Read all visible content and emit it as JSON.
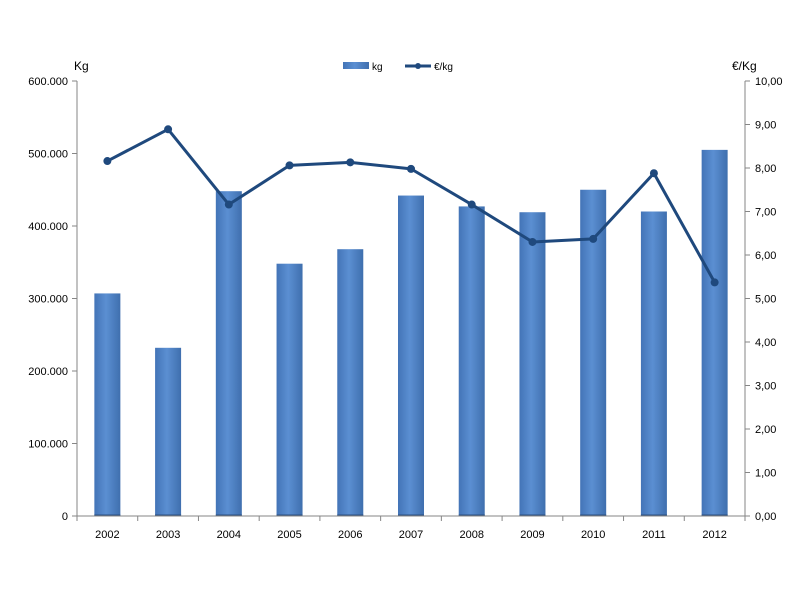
{
  "chart_data": {
    "type": "bar",
    "categories": [
      "2002",
      "2003",
      "2004",
      "2005",
      "2006",
      "2007",
      "2008",
      "2009",
      "2010",
      "2011",
      "2012"
    ],
    "series": [
      {
        "name": "kg",
        "type": "bar",
        "axis": "left",
        "color": "#4F81BD",
        "values": [
          307000,
          232000,
          448000,
          348000,
          368000,
          442000,
          427000,
          419000,
          450000,
          420000,
          505000
        ]
      },
      {
        "name": "€/kg",
        "type": "line",
        "axis": "right",
        "color": "#1F497D",
        "values": [
          8.16,
          8.89,
          7.16,
          8.06,
          8.13,
          7.98,
          7.16,
          6.3,
          6.37,
          7.88,
          5.37
        ]
      }
    ],
    "left_axis": {
      "unit_label": "Kg",
      "ylim": [
        0,
        600000
      ],
      "tick_labels": [
        "0",
        "100.000",
        "200.000",
        "300.000",
        "400.000",
        "500.000",
        "600.000"
      ]
    },
    "right_axis": {
      "unit_label": "€/Kg",
      "ylim": [
        0,
        10
      ],
      "tick_labels": [
        "0,00",
        "1,00",
        "2,00",
        "3,00",
        "4,00",
        "5,00",
        "6,00",
        "7,00",
        "8,00",
        "9,00",
        "10,00"
      ]
    },
    "legend_position": "top-center",
    "grid": false,
    "title": "",
    "xlabel": ""
  }
}
